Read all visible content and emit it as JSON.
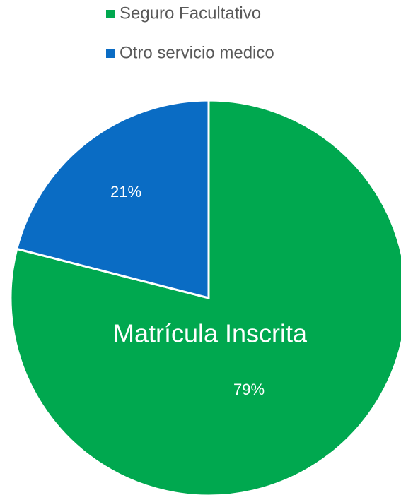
{
  "chart_data": {
    "type": "pie",
    "title": "Matrícula Inscrita",
    "categories": [
      "Seguro Facultativo",
      "Otro servicio medico"
    ],
    "values": [
      79,
      21
    ],
    "value_labels": [
      "79%",
      "21%"
    ],
    "colors": [
      "#00a84f",
      "#0a6cc4"
    ],
    "legend": "top"
  }
}
